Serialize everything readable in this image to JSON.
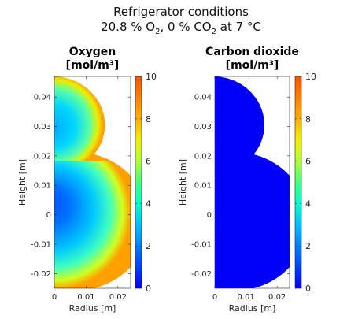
{
  "figure": {
    "title_line1": "Refrigerator conditions",
    "o2_value": "20.8 % O",
    "o2_sub": "2",
    "co2_value": ",  0 % CO",
    "co2_sub": "2",
    "temp": "  at  7 °C"
  },
  "chart_data": [
    {
      "type": "heatmap",
      "title": "Oxygen",
      "subtitle": "[mol/m³]",
      "xlabel": "Radius [m]",
      "ylabel": "Height [m]",
      "xlim": [
        0,
        0.024
      ],
      "ylim": [
        -0.025,
        0.047
      ],
      "xticks": [
        "0",
        "0.01",
        "0.02"
      ],
      "xtick_values": [
        0,
        0.01,
        0.02
      ],
      "yticks": [
        "-0.02",
        "-0.01",
        "0",
        "0.01",
        "0.02",
        "0.03",
        "0.04"
      ],
      "ytick_values": [
        -0.02,
        -0.01,
        0,
        0.01,
        0.02,
        0.03,
        0.04
      ],
      "colorbar": {
        "min": 0,
        "max": 10,
        "ticks": [
          "0",
          "2",
          "4",
          "6",
          "8",
          "10"
        ],
        "tick_values": [
          0,
          2,
          4,
          6,
          8,
          10
        ]
      },
      "value_range": [
        0.8,
        8.5
      ],
      "colormap": "jet"
    },
    {
      "type": "heatmap",
      "title": "Carbon dioxide",
      "subtitle": "[mol/m³]",
      "xlabel": "Radius [m]",
      "ylabel": "Height [m]",
      "xlim": [
        0,
        0.024
      ],
      "ylim": [
        -0.025,
        0.047
      ],
      "xticks": [
        "0",
        "0.01",
        "0.02"
      ],
      "xtick_values": [
        0,
        0.01,
        0.02
      ],
      "yticks": [
        "-0.02",
        "-0.01",
        "0",
        "0.01",
        "0.02",
        "0.03",
        "0.04"
      ],
      "ytick_values": [
        -0.02,
        -0.01,
        0,
        0.01,
        0.02,
        0.03,
        0.04
      ],
      "colorbar": {
        "min": 0,
        "max": 10,
        "ticks": [
          "0",
          "2",
          "4",
          "6",
          "8",
          "10"
        ],
        "tick_values": [
          0,
          2,
          4,
          6,
          8,
          10
        ]
      },
      "value_range": [
        1.2,
        1.2
      ],
      "colormap": "jet"
    }
  ]
}
